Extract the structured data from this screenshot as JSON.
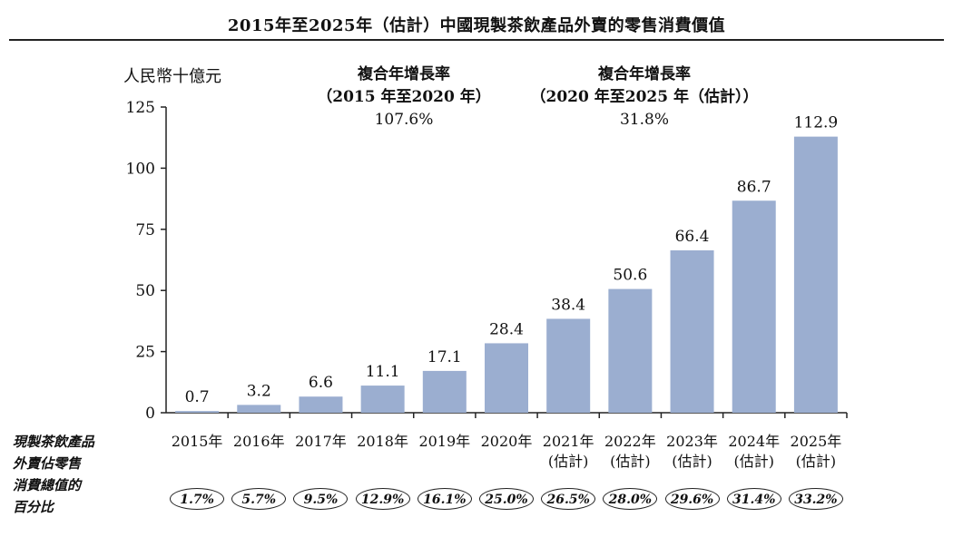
{
  "chart_data": {
    "type": "bar",
    "title": "2015年至2025年（估計）中國現製茶飲產品外賣的零售消費價值",
    "ylabel": "人民幣十億元",
    "ylim": [
      0,
      125
    ],
    "yticks": [
      "0",
      "25",
      "50",
      "75",
      "100",
      "125"
    ],
    "categories": [
      "2015年",
      "2016年",
      "2017年",
      "2018年",
      "2019年",
      "2020年",
      "2021年",
      "2022年",
      "2023年",
      "2024年",
      "2025年"
    ],
    "estimate_note": "(估計)",
    "estimated": [
      false,
      false,
      false,
      false,
      false,
      false,
      true,
      true,
      true,
      true,
      true
    ],
    "values": [
      0.7,
      3.2,
      6.6,
      11.1,
      17.1,
      28.4,
      38.4,
      50.6,
      66.4,
      86.7,
      112.9
    ],
    "value_labels": [
      "0.7",
      "3.2",
      "6.6",
      "11.1",
      "17.1",
      "28.4",
      "38.4",
      "50.6",
      "66.4",
      "86.7",
      "112.9"
    ],
    "bar_color": "#9baed0",
    "cagr": [
      {
        "heading": "複合年增長率",
        "period": "（2015 年至2020 年）",
        "value": "107.6%"
      },
      {
        "heading": "複合年增長率",
        "period": "（2020 年至2025 年（估計））",
        "value": "31.8%"
      }
    ],
    "share_label": "現製茶飲產品外賣佔零售消費總值的百分比",
    "share_label_lines": [
      "現製茶飲產品",
      "外賣佔零售",
      "消費總值的",
      "百分比"
    ],
    "share_values": [
      "1.7%",
      "5.7%",
      "9.5%",
      "12.9%",
      "16.1%",
      "25.0%",
      "26.5%",
      "28.0%",
      "29.6%",
      "31.4%",
      "33.2%"
    ]
  }
}
